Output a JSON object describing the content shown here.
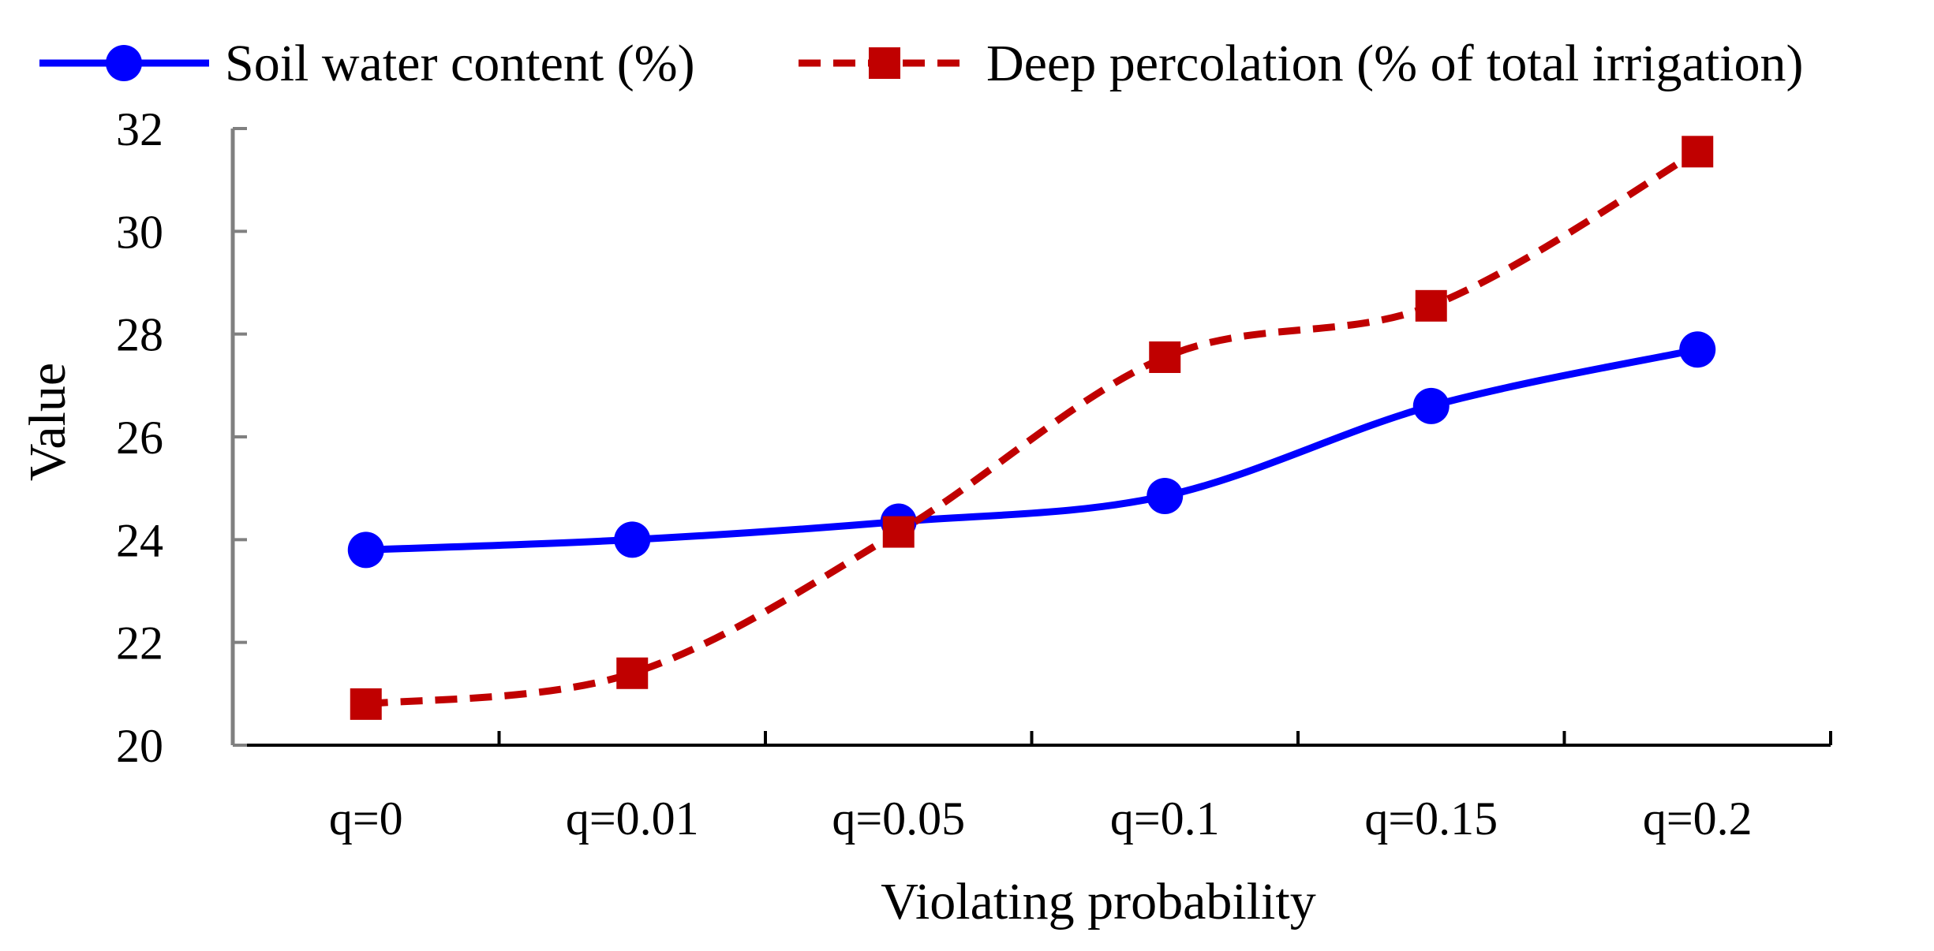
{
  "chart_data": {
    "type": "line",
    "title": "",
    "xlabel": "Violating probability",
    "ylabel": "Value",
    "categories": [
      "q=0",
      "q=0.01",
      "q=0.05",
      "q=0.1",
      "q=0.15",
      "q=0.2"
    ],
    "ylim": [
      20,
      32
    ],
    "yticks": [
      20,
      22,
      24,
      26,
      28,
      30,
      32
    ],
    "grid": false,
    "legend_position": "top",
    "series": [
      {
        "name": "Soil water content (%)",
        "values": [
          23.8,
          24.0,
          24.35,
          24.85,
          26.6,
          27.7
        ],
        "color": "#0000ff",
        "line_style": "solid",
        "marker": "circle"
      },
      {
        "name": "Deep percolation (% of total irrigation)",
        "values": [
          20.8,
          21.4,
          24.15,
          27.55,
          28.55,
          31.55
        ],
        "color": "#c00000",
        "line_style": "dashed",
        "marker": "square"
      }
    ]
  }
}
